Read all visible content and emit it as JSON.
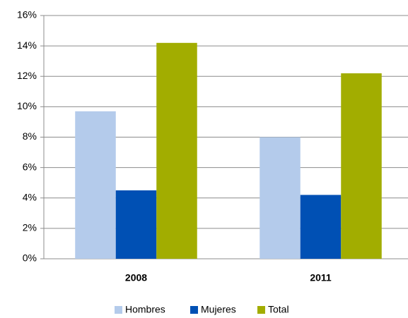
{
  "chart_data": {
    "type": "bar",
    "categories": [
      "2008",
      "2011"
    ],
    "series": [
      {
        "name": "Hombres",
        "color": "#b4cbeb",
        "values": [
          9.7,
          8.0
        ]
      },
      {
        "name": "Mujeres",
        "color": "#0050b4",
        "values": [
          4.5,
          4.2
        ]
      },
      {
        "name": "Total",
        "color": "#a2ad00",
        "values": [
          14.2,
          12.2
        ]
      }
    ],
    "ylim": [
      0,
      16
    ],
    "yticks": [
      {
        "value": 0,
        "label": "0%"
      },
      {
        "value": 2,
        "label": "2%"
      },
      {
        "value": 4,
        "label": "4%"
      },
      {
        "value": 6,
        "label": "6%"
      },
      {
        "value": 8,
        "label": "8%"
      },
      {
        "value": 10,
        "label": "10%"
      },
      {
        "value": 12,
        "label": "12%"
      },
      {
        "value": 14,
        "label": "14%"
      },
      {
        "value": 16,
        "label": "16%"
      }
    ],
    "grid": true,
    "legend": "bottom"
  }
}
